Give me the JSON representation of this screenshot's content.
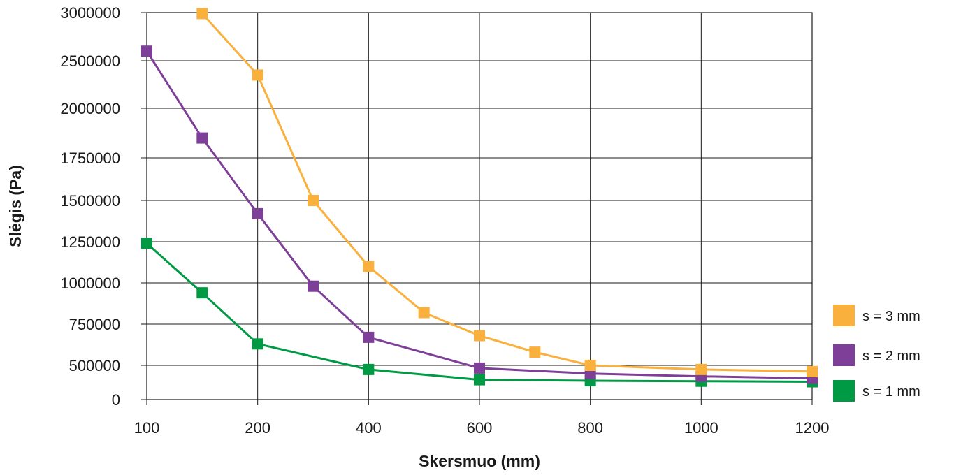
{
  "chart_data": {
    "type": "line",
    "xlabel": "Skersmuo  (mm)",
    "ylabel": "Slėgis  (Pa)",
    "x_ticks": [
      "100",
      "200",
      "400",
      "600",
      "800",
      "1000",
      "1200"
    ],
    "y_ticks": [
      "0",
      "500000",
      "750000",
      "1000000",
      "1250000",
      "1500000",
      "1750000",
      "2000000",
      "2500000",
      "3000000"
    ],
    "grid": true,
    "legend_position": "right-bottom",
    "series": [
      {
        "name": "s = 3 mm",
        "color": "#F9B03D",
        "marker": "square",
        "points": [
          {
            "x": 150,
            "y": 2990000
          },
          {
            "x": 200,
            "y": 2350000
          },
          {
            "x": 300,
            "y": 1500000
          },
          {
            "x": 400,
            "y": 1100000
          },
          {
            "x": 500,
            "y": 820000
          },
          {
            "x": 600,
            "y": 680000
          },
          {
            "x": 700,
            "y": 580000
          },
          {
            "x": 800,
            "y": 500000
          },
          {
            "x": 1000,
            "y": 440000
          },
          {
            "x": 1200,
            "y": 410000
          }
        ]
      },
      {
        "name": "s = 2 mm",
        "color": "#7E3F98",
        "marker": "square",
        "points": [
          {
            "x": 100,
            "y": 2600000
          },
          {
            "x": 150,
            "y": 1850000
          },
          {
            "x": 200,
            "y": 1420000
          },
          {
            "x": 300,
            "y": 980000
          },
          {
            "x": 400,
            "y": 670000
          },
          {
            "x": 600,
            "y": 460000
          },
          {
            "x": 800,
            "y": 380000
          },
          {
            "x": 1000,
            "y": 340000
          },
          {
            "x": 1200,
            "y": 310000
          }
        ]
      },
      {
        "name": "s = 1 mm",
        "color": "#009A44",
        "marker": "square",
        "points": [
          {
            "x": 100,
            "y": 1240000
          },
          {
            "x": 150,
            "y": 940000
          },
          {
            "x": 200,
            "y": 630000
          },
          {
            "x": 400,
            "y": 440000
          },
          {
            "x": 600,
            "y": 290000
          },
          {
            "x": 800,
            "y": 275000
          },
          {
            "x": 1000,
            "y": 268000
          },
          {
            "x": 1200,
            "y": 260000
          }
        ]
      }
    ],
    "legend_order": [
      "s = 3 mm",
      "s = 2 mm",
      "s = 1 mm"
    ]
  }
}
